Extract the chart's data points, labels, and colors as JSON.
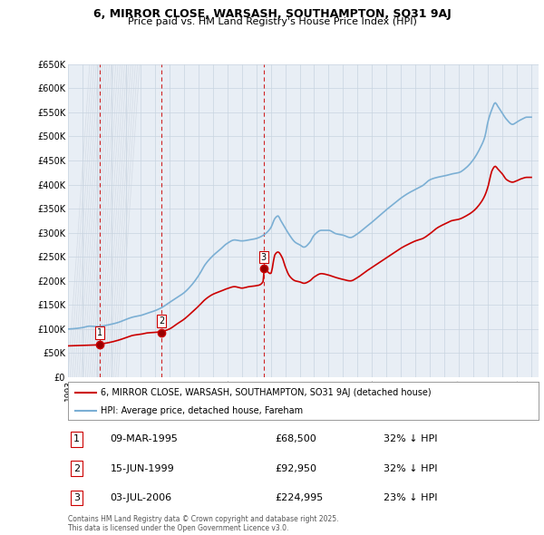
{
  "title": "6, MIRROR CLOSE, WARSASH, SOUTHAMPTON, SO31 9AJ",
  "subtitle": "Price paid vs. HM Land Registry's House Price Index (HPI)",
  "legend_line1": "6, MIRROR CLOSE, WARSASH, SOUTHAMPTON, SO31 9AJ (detached house)",
  "legend_line2": "HPI: Average price, detached house, Fareham",
  "sale_color": "#cc0000",
  "hpi_color": "#7bafd4",
  "ylim": [
    0,
    650000
  ],
  "yticks": [
    0,
    50000,
    100000,
    150000,
    200000,
    250000,
    300000,
    350000,
    400000,
    450000,
    500000,
    550000,
    600000,
    650000
  ],
  "ytick_labels": [
    "£0",
    "£50K",
    "£100K",
    "£150K",
    "£200K",
    "£250K",
    "£300K",
    "£350K",
    "£400K",
    "£450K",
    "£500K",
    "£550K",
    "£600K",
    "£650K"
  ],
  "footer": "Contains HM Land Registry data © Crown copyright and database right 2025.\nThis data is licensed under the Open Government Licence v3.0.",
  "sales": [
    {
      "date_num": 1995.19,
      "price": 68500,
      "label": "1"
    },
    {
      "date_num": 1999.46,
      "price": 92950,
      "label": "2"
    },
    {
      "date_num": 2006.51,
      "price": 224995,
      "label": "3"
    }
  ],
  "sale_annotations": [
    {
      "label": "1",
      "date": "09-MAR-1995",
      "price": "£68,500",
      "hpi": "32% ↓ HPI"
    },
    {
      "label": "2",
      "date": "15-JUN-1999",
      "price": "£92,950",
      "hpi": "32% ↓ HPI"
    },
    {
      "label": "3",
      "date": "03-JUL-2006",
      "price": "£224,995",
      "hpi": "23% ↓ HPI"
    }
  ],
  "vline_years": [
    1995.19,
    1999.46,
    2006.51
  ],
  "background_color": "#e8eef5",
  "grid_color": "#c8d4e0",
  "hatch_color": "#d0d8e8"
}
